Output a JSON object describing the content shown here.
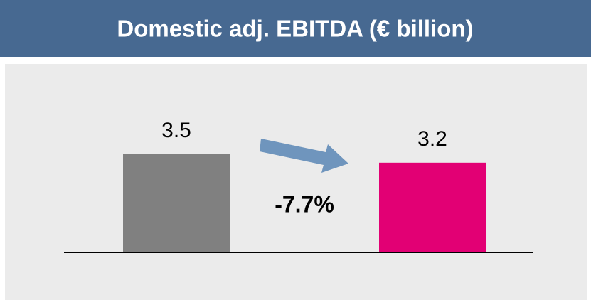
{
  "chart_data": {
    "type": "bar",
    "title": "Domestic adj. EBITDA (€ billion)",
    "categories": [
      null,
      null
    ],
    "values": [
      3.5,
      3.2
    ],
    "colors": [
      "#808080",
      "#e20074"
    ],
    "annotation": "-7.7%"
  }
}
